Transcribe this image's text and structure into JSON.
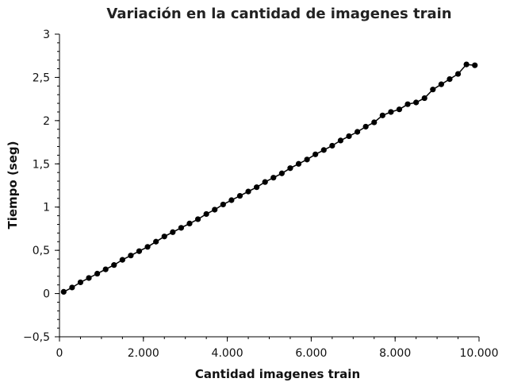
{
  "chart_data": {
    "type": "line",
    "title": "Variación en la cantidad de imagenes train",
    "xlabel": "Cantidad imagenes train",
    "ylabel": "Tiempo (seg)",
    "xlim": [
      0,
      10000
    ],
    "ylim": [
      -0.5,
      3
    ],
    "x_ticks": [
      0,
      2000,
      4000,
      6000,
      8000,
      10000
    ],
    "x_tick_labels": [
      "0",
      "2.000",
      "4.000",
      "6.000",
      "8.000",
      "10.000"
    ],
    "y_ticks": [
      -0.5,
      0,
      0.5,
      1,
      1.5,
      2,
      2.5,
      3
    ],
    "y_tick_labels": [
      "−0,5",
      "0",
      "0,5",
      "1",
      "1,5",
      "2",
      "2,5",
      "3"
    ],
    "grid": false,
    "legend": "none",
    "series": [
      {
        "color": "#000000",
        "x": [
          100,
          300,
          500,
          700,
          900,
          1100,
          1300,
          1500,
          1700,
          1900,
          2100,
          2300,
          2500,
          2700,
          2900,
          3100,
          3300,
          3500,
          3700,
          3900,
          4100,
          4300,
          4500,
          4700,
          4900,
          5100,
          5300,
          5500,
          5700,
          5900,
          6100,
          6300,
          6500,
          6700,
          6900,
          7100,
          7300,
          7500,
          7700,
          7900,
          8100,
          8300,
          8500,
          8700,
          8900,
          9100,
          9300,
          9500,
          9700,
          9900
        ],
        "y": [
          0.02,
          0.07,
          0.13,
          0.18,
          0.23,
          0.28,
          0.33,
          0.39,
          0.44,
          0.49,
          0.54,
          0.6,
          0.66,
          0.71,
          0.76,
          0.81,
          0.86,
          0.92,
          0.97,
          1.03,
          1.08,
          1.13,
          1.18,
          1.23,
          1.29,
          1.34,
          1.39,
          1.45,
          1.5,
          1.55,
          1.61,
          1.66,
          1.71,
          1.77,
          1.82,
          1.87,
          1.93,
          1.98,
          2.06,
          2.1,
          2.13,
          2.19,
          2.21,
          2.26,
          2.36,
          2.42,
          2.48,
          2.54,
          2.65,
          2.64
        ]
      }
    ]
  }
}
